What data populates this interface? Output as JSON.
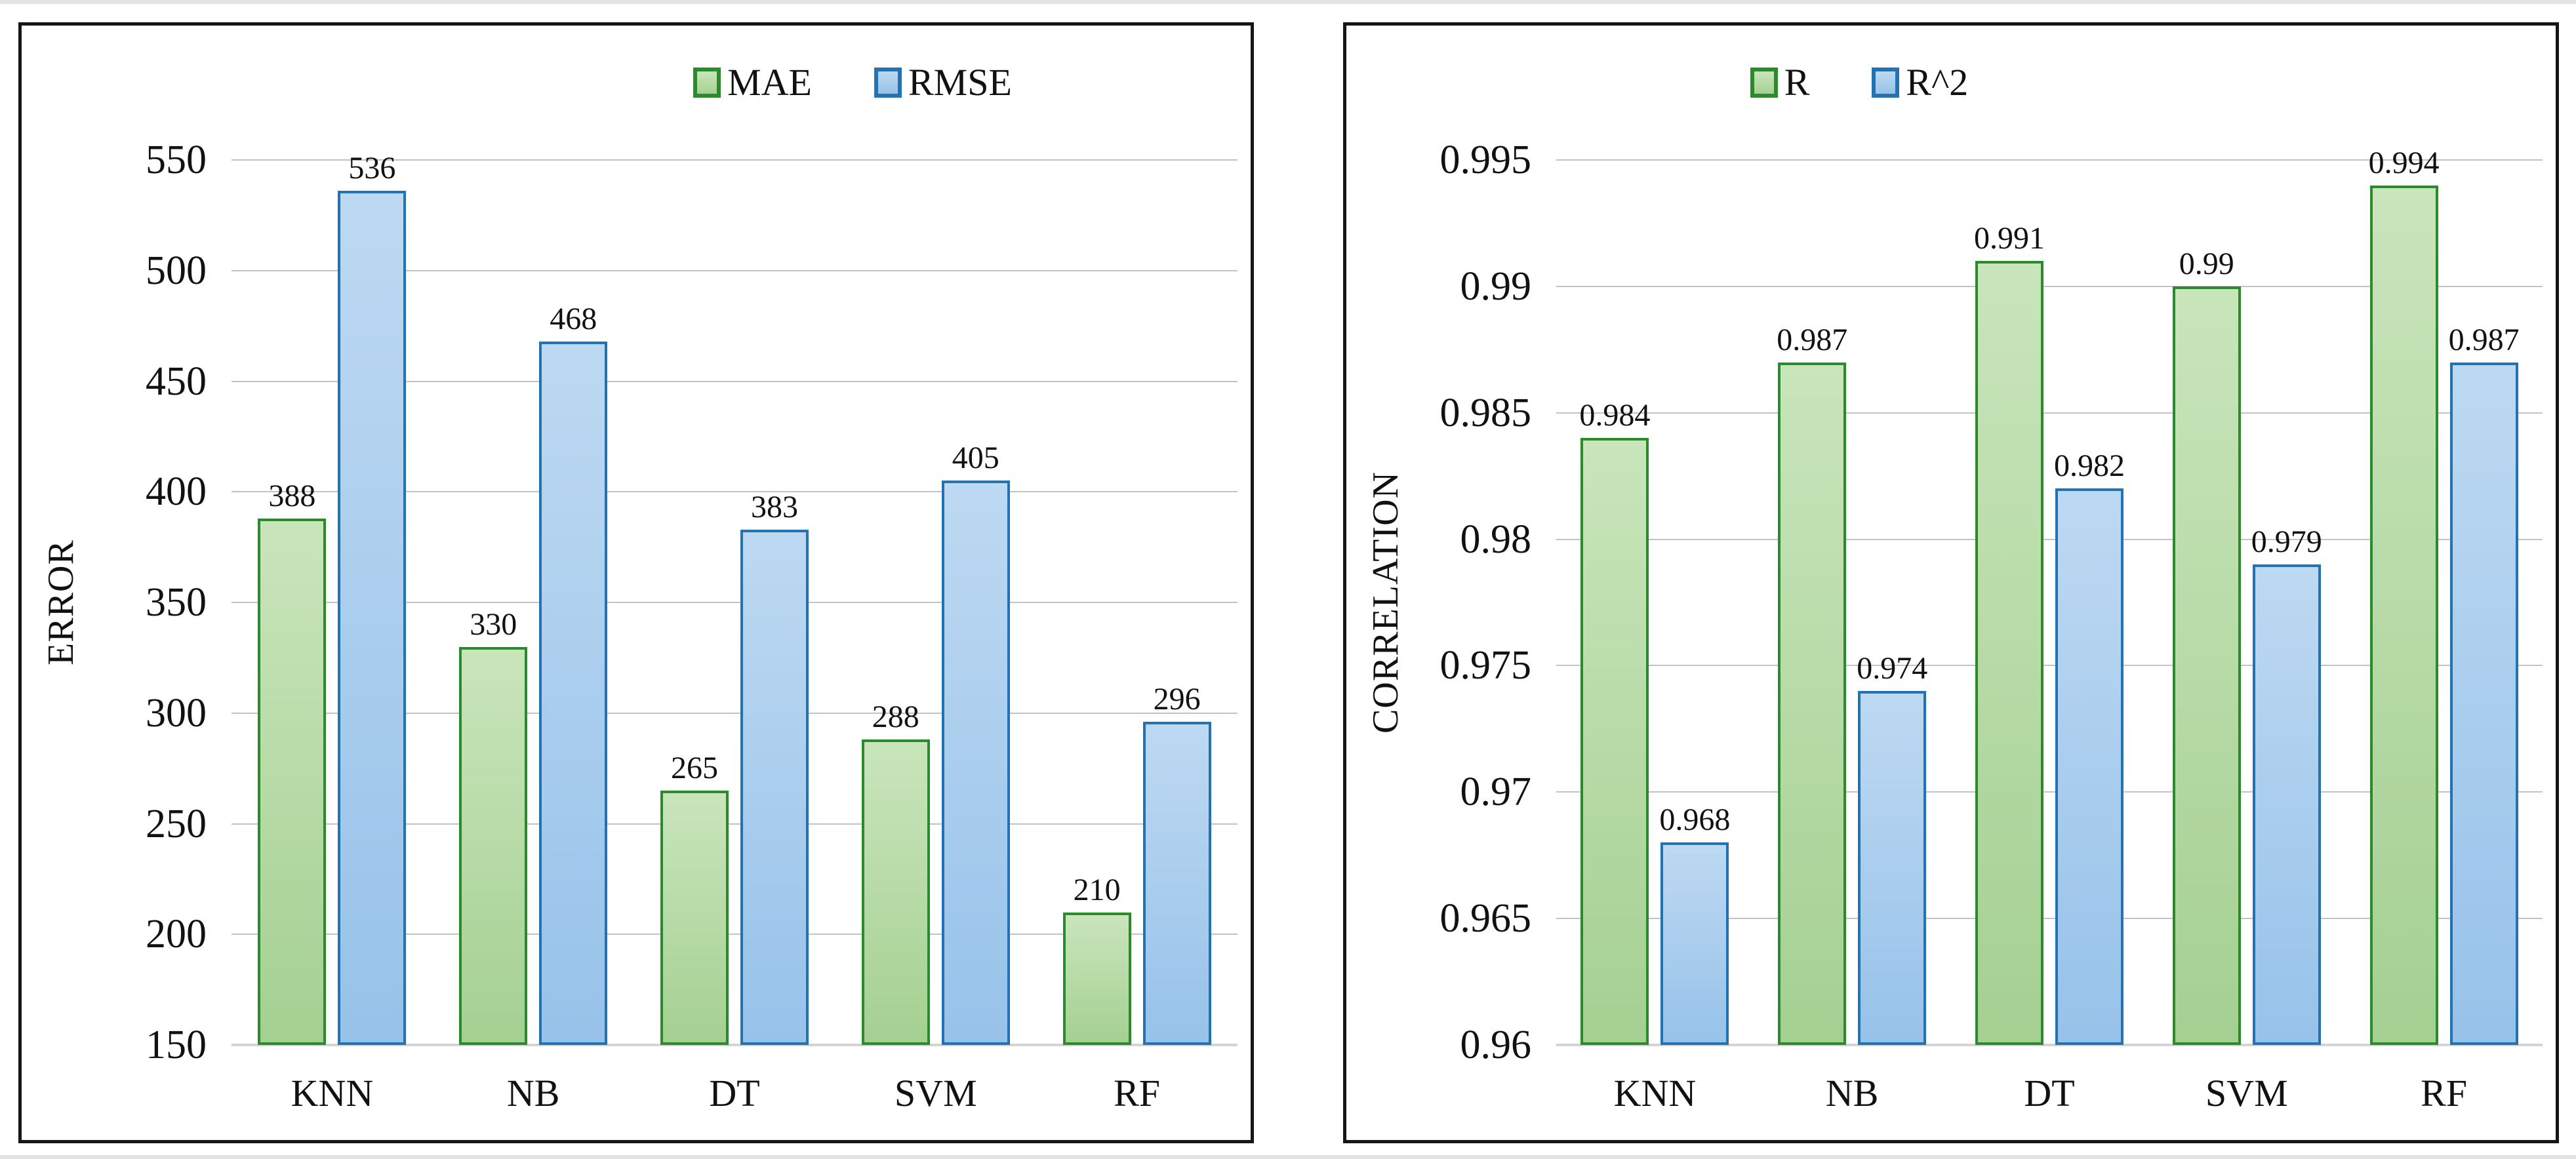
{
  "page": {
    "background": "#ffffff",
    "panel_border": "#161616",
    "gridline_color": "#c3c3c3",
    "text_color": "#111111"
  },
  "chart_data": [
    {
      "type": "bar",
      "title": "",
      "xlabel": "",
      "ylabel": "ERROR",
      "categories": [
        "KNN",
        "NB",
        "DT",
        "SVM",
        "RF"
      ],
      "series": [
        {
          "name": "MAE",
          "values": [
            388,
            330,
            265,
            288,
            210
          ],
          "labels": [
            "388",
            "330",
            "265",
            "288",
            "210"
          ],
          "fill_top": "#c9e5bb",
          "fill_bottom": "#a5d092",
          "border": "#2b8a2b"
        },
        {
          "name": "RMSE",
          "values": [
            536,
            468,
            383,
            405,
            296
          ],
          "labels": [
            "536",
            "468",
            "383",
            "405",
            "296"
          ],
          "fill_top": "#bdd9f2",
          "fill_bottom": "#97c2e9",
          "border": "#2272b4"
        }
      ],
      "ylim": [
        150,
        550
      ],
      "yticks": [
        150,
        200,
        250,
        300,
        350,
        400,
        450,
        500,
        550
      ],
      "ytick_labels": [
        "150",
        "200",
        "250",
        "300",
        "350",
        "400",
        "450",
        "500",
        "550"
      ],
      "grid": true,
      "legend_position": "top"
    },
    {
      "type": "bar",
      "title": "",
      "xlabel": "",
      "ylabel": "CORRELATION",
      "categories": [
        "KNN",
        "NB",
        "DT",
        "SVM",
        "RF"
      ],
      "series": [
        {
          "name": "R",
          "values": [
            0.984,
            0.987,
            0.991,
            0.99,
            0.994
          ],
          "labels": [
            "0.984",
            "0.987",
            "0.991",
            "0.99",
            "0.994"
          ],
          "fill_top": "#c9e5bb",
          "fill_bottom": "#a5d092",
          "border": "#2b8a2b"
        },
        {
          "name": "R^2",
          "values": [
            0.968,
            0.974,
            0.982,
            0.979,
            0.987
          ],
          "labels": [
            "0.968",
            "0.974",
            "0.982",
            "0.979",
            "0.987"
          ],
          "fill_top": "#bdd9f2",
          "fill_bottom": "#97c2e9",
          "border": "#2272b4"
        }
      ],
      "ylim": [
        0.96,
        0.995
      ],
      "yticks": [
        0.96,
        0.965,
        0.97,
        0.975,
        0.98,
        0.985,
        0.99,
        0.995
      ],
      "ytick_labels": [
        "0.96",
        "0.965",
        "0.97",
        "0.975",
        "0.98",
        "0.985",
        "0.99",
        "0.995"
      ],
      "grid": true,
      "legend_position": "top"
    }
  ]
}
